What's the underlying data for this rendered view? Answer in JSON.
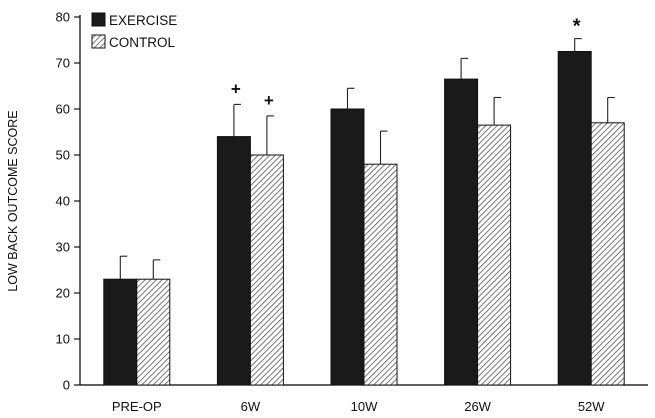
{
  "chart_data": {
    "type": "bar",
    "title": "",
    "xlabel": "",
    "ylabel": "LOW BACK OUTCOME SCORE",
    "ylim": [
      0,
      80
    ],
    "yticks": [
      0,
      10,
      20,
      30,
      40,
      50,
      60,
      70,
      80
    ],
    "grid": false,
    "legend_position": "top-left",
    "categories": [
      "PRE-OP",
      "6W",
      "10W",
      "26W",
      "52W"
    ],
    "series": [
      {
        "name": "EXERCISE",
        "pattern": "solid-dark",
        "color": "#1a1a1a",
        "values": [
          23,
          54,
          60,
          66.5,
          72.5
        ],
        "errors": [
          5,
          7,
          4.5,
          4.5,
          2.8
        ]
      },
      {
        "name": "CONTROL",
        "pattern": "hatched",
        "color": "#8a8a8a",
        "values": [
          23,
          50,
          48,
          56.5,
          57
        ],
        "errors": [
          4.2,
          8.5,
          7.2,
          6,
          5.5
        ]
      }
    ],
    "annotations": [
      {
        "text": "+",
        "category": "6W",
        "series": "EXERCISE"
      },
      {
        "text": "+",
        "category": "6W",
        "series": "CONTROL"
      },
      {
        "text": "*",
        "category": "52W",
        "series": "EXERCISE"
      }
    ]
  }
}
